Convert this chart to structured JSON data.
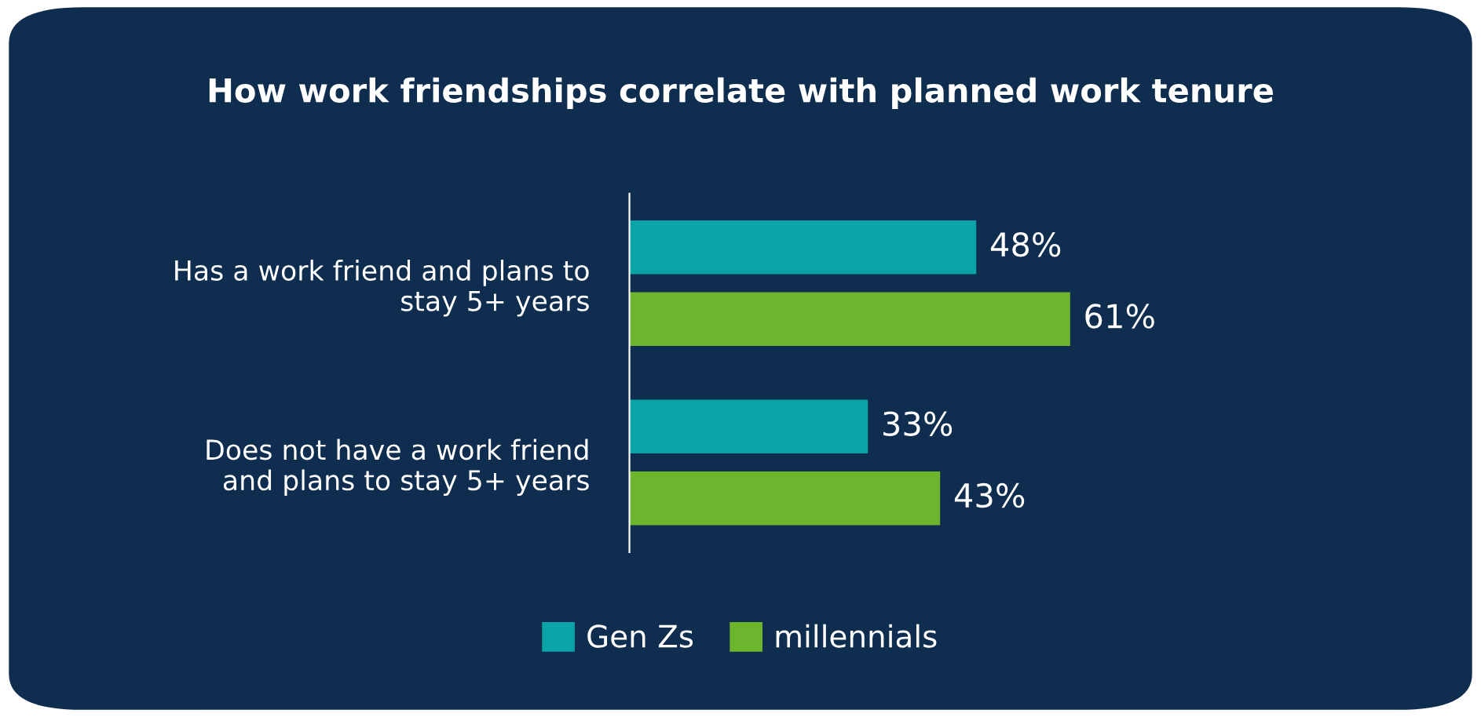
{
  "chart_data": {
    "type": "bar",
    "orientation": "horizontal",
    "title": "How work friendships correlate with planned work tenure",
    "categories": [
      "Has a work friend and plans to\nstay 5+ years",
      "Does not have a work friend\nand plans to stay 5+ years"
    ],
    "series": [
      {
        "name": "Gen Zs",
        "color": "#0aa3a6",
        "values": [
          48,
          33
        ],
        "value_labels": [
          "48%",
          "33%"
        ]
      },
      {
        "name": "millennials",
        "color": "#6cb52d",
        "values": [
          61,
          43
        ],
        "value_labels": [
          "61%",
          "43%"
        ]
      }
    ],
    "legend": "bottom",
    "grid": false
  }
}
